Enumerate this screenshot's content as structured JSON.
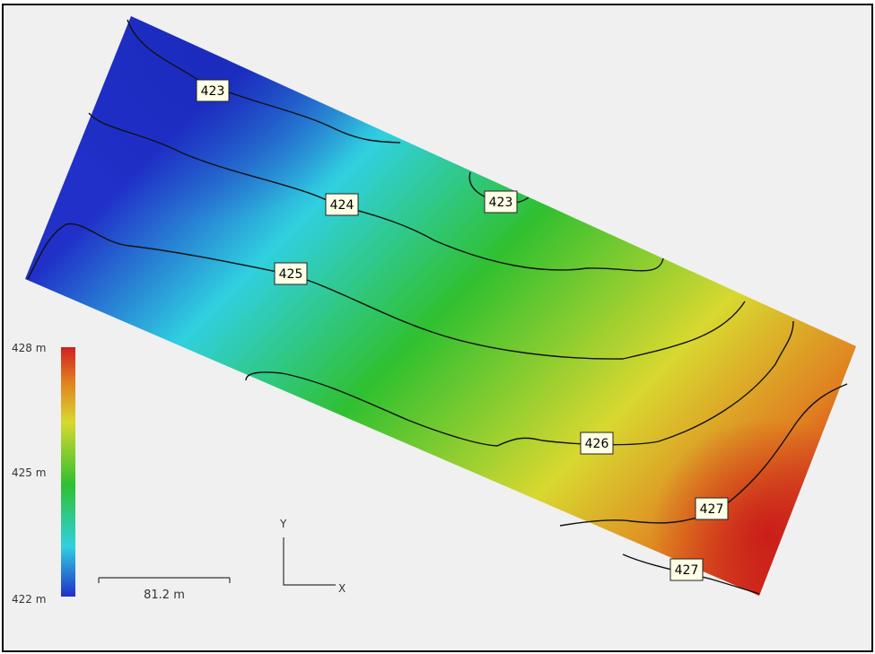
{
  "map": {
    "colors": {
      "low": "#2030c8",
      "cyan": "#30d0e0",
      "mid": "#30c030",
      "yellow": "#d8d830",
      "orange": "#e08020",
      "high": "#d02020",
      "background": "#f0f0f0"
    },
    "contours": [
      {
        "level": "423",
        "label": "423"
      },
      {
        "level": "423",
        "label": "423"
      },
      {
        "level": "424",
        "label": "424"
      },
      {
        "level": "425",
        "label": "425"
      },
      {
        "level": "426",
        "label": "426"
      },
      {
        "level": "427",
        "label": "427"
      },
      {
        "level": "427",
        "label": "427"
      }
    ]
  },
  "legend": {
    "max_label": "428 m",
    "mid_label": "425 m",
    "min_label": "422 m",
    "max_value": 428,
    "mid_value": 425,
    "min_value": 422
  },
  "scale_bar": {
    "label": "81.2 m"
  },
  "axes": {
    "y_label": "Y",
    "x_label": "X"
  }
}
